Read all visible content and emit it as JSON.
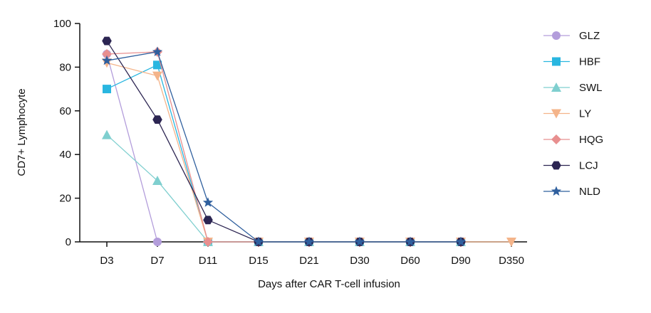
{
  "chart_data": {
    "type": "line",
    "title": "",
    "xlabel": "Days after CAR T-cell infusion",
    "ylabel": "CD7+ Lymphocyte",
    "categories": [
      "D3",
      "D7",
      "D11",
      "D15",
      "D21",
      "D30",
      "D60",
      "D90",
      "D350"
    ],
    "ylim": [
      0,
      100
    ],
    "yticks": [
      0,
      20,
      40,
      60,
      80,
      100
    ],
    "grid": false,
    "legend_position": "right",
    "series": [
      {
        "name": "GLZ",
        "color": "#b39ddb",
        "marker": "circle",
        "values": [
          86,
          0,
          null,
          null,
          null,
          null,
          null,
          null,
          null
        ]
      },
      {
        "name": "HBF",
        "color": "#29b6e0",
        "marker": "square",
        "values": [
          70,
          81,
          0,
          0,
          0,
          0,
          0,
          0,
          null
        ]
      },
      {
        "name": "SWL",
        "color": "#7fcfcf",
        "marker": "triangle-up",
        "values": [
          49,
          28,
          0,
          0,
          0,
          0,
          0,
          0,
          null
        ]
      },
      {
        "name": "LY",
        "color": "#f4b48a",
        "marker": "triangle-down",
        "values": [
          82,
          76,
          0,
          0,
          0,
          0,
          0,
          0,
          0
        ]
      },
      {
        "name": "HQG",
        "color": "#e88f8f",
        "marker": "diamond",
        "values": [
          86,
          87,
          0,
          0,
          0,
          0,
          0,
          0,
          null
        ]
      },
      {
        "name": "LCJ",
        "color": "#2c2552",
        "marker": "hexagon",
        "values": [
          92,
          56,
          10,
          0,
          0,
          0,
          0,
          0,
          null
        ]
      },
      {
        "name": "NLD",
        "color": "#2f5f9e",
        "marker": "star",
        "values": [
          83,
          87,
          18,
          0,
          0,
          0,
          0,
          0,
          null
        ]
      }
    ]
  }
}
